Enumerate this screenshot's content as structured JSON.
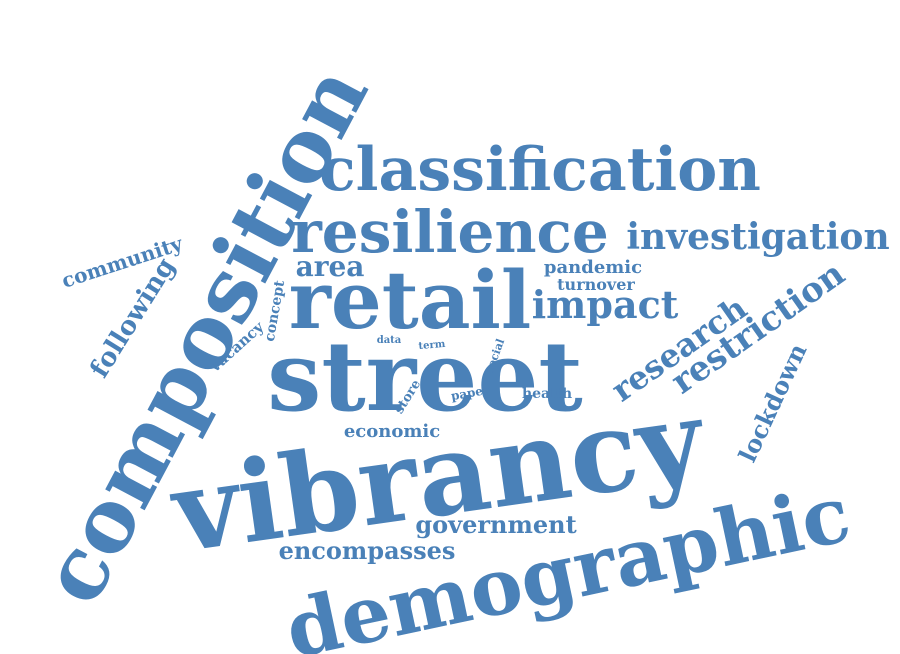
{
  "color": "#4a81b8",
  "words": {
    "composition": "composition",
    "classification": "classification",
    "resilience": "resilience",
    "investigation": "investigation",
    "retail": "retail",
    "street": "street",
    "vibrancy": "vibrancy",
    "demographic": "demographic",
    "community": "community",
    "following": "following",
    "area": "area",
    "concept": "concept",
    "vacancy": "vacancy",
    "pandemic": "pandemic",
    "turnover": "turnover",
    "impact": "impact",
    "research": "research",
    "restriction": "restriction",
    "lockdown": "lockdown",
    "data": "data",
    "term": "term",
    "social": "social",
    "store": "store",
    "paper": "paper",
    "health": "health",
    "economic": "economic",
    "government": "government",
    "encompasses": "encompasses"
  }
}
